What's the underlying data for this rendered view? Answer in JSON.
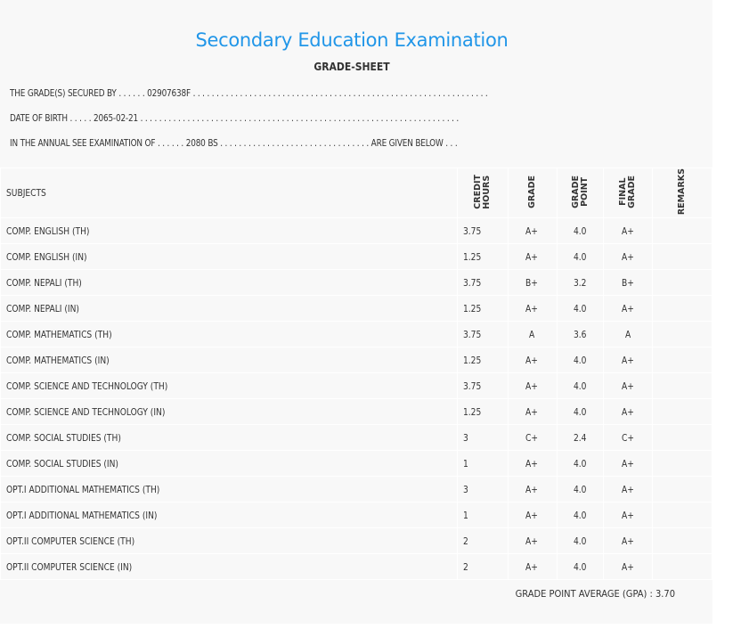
{
  "header": {
    "title": "Secondary Education Examination",
    "subtitle": "GRADE-SHEET",
    "line1": "THE GRADE(S) SECURED BY . . . . . . 02907638F . . . . . . . . . . . . . . . . . . . . . . . . . . . . . . . . . . . . . . . . . . . . . . . . . . . . . . . . . . . . . . .",
    "line2": "DATE OF BIRTH . . . . . 2065-02-21 . . . . . . . . . . . . . . . . . . . . . . . . . . . . . . . . . . . . . . . . . . . . . . . . . . . . . . . . . . . . . . . . . . . .",
    "line3": "IN THE ANNUAL SEE EXAMINATION OF . . . . . . 2080 BS . . . . . . . . . . . . . . . . . . . . . . . . . . . . . . . . ARE GIVEN BELOW . . ."
  },
  "columns": [
    "SUBJECTS",
    "CREDIT\nHOURS",
    "GRADE",
    "GRADE\nPOINT",
    "FINAL\nGRADE",
    "REMARKS"
  ],
  "rows": [
    [
      "COMP. ENGLISH (TH)",
      "3.75",
      "A+",
      "4.0",
      "A+",
      ""
    ],
    [
      "COMP. ENGLISH (IN)",
      "1.25",
      "A+",
      "4.0",
      "A+",
      ""
    ],
    [
      "COMP. NEPALI (TH)",
      "3.75",
      "B+",
      "3.2",
      "B+",
      ""
    ],
    [
      "COMP. NEPALI (IN)",
      "1.25",
      "A+",
      "4.0",
      "A+",
      ""
    ],
    [
      "COMP. MATHEMATICS (TH)",
      "3.75",
      "A",
      "3.6",
      "A",
      ""
    ],
    [
      "COMP. MATHEMATICS (IN)",
      "1.25",
      "A+",
      "4.0",
      "A+",
      ""
    ],
    [
      "COMP. SCIENCE AND TECHNOLOGY (TH)",
      "3.75",
      "A+",
      "4.0",
      "A+",
      ""
    ],
    [
      "COMP. SCIENCE AND TECHNOLOGY (IN)",
      "1.25",
      "A+",
      "4.0",
      "A+",
      ""
    ],
    [
      "COMP. SOCIAL STUDIES (TH)",
      "3",
      "C+",
      "2.4",
      "C+",
      ""
    ],
    [
      "COMP. SOCIAL STUDIES (IN)",
      "1",
      "A+",
      "4.0",
      "A+",
      ""
    ],
    [
      "OPT.I ADDITIONAL MATHEMATICS (TH)",
      "3",
      "A+",
      "4.0",
      "A+",
      ""
    ],
    [
      "OPT.I ADDITIONAL MATHEMATICS (IN)",
      "1",
      "A+",
      "4.0",
      "A+",
      ""
    ],
    [
      "OPT.II COMPUTER SCIENCE (TH)",
      "2",
      "A+",
      "4.0",
      "A+",
      ""
    ],
    [
      "OPT.II COMPUTER SCIENCE (IN)",
      "2",
      "A+",
      "4.0",
      "A+",
      ""
    ]
  ],
  "footer": {
    "gpa": "GRADE POINT AVERAGE (GPA) : 3.70"
  }
}
